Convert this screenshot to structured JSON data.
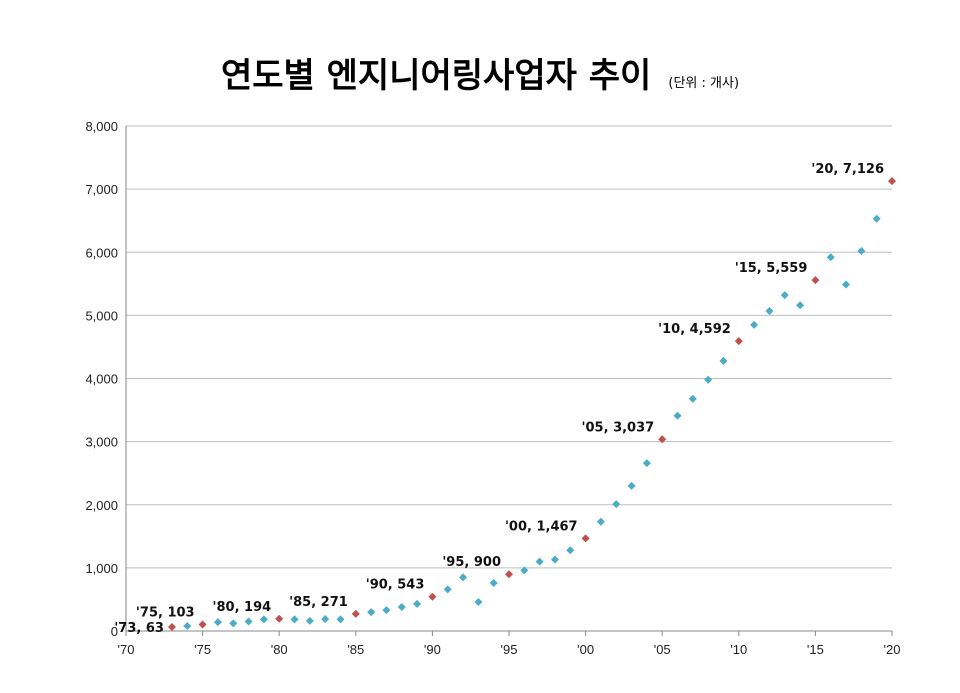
{
  "title": "연도별 엔지니어링사업자 추이",
  "unit_note": "(단위 : 개사)",
  "chart_data": {
    "type": "scatter",
    "xlim": [
      1970,
      2020
    ],
    "ylim": [
      0,
      8000
    ],
    "grid": true,
    "legend": "none",
    "x_ticks": [
      {
        "value": 1970,
        "label": "'70"
      },
      {
        "value": 1975,
        "label": "'75"
      },
      {
        "value": 1980,
        "label": "'80"
      },
      {
        "value": 1985,
        "label": "'85"
      },
      {
        "value": 1990,
        "label": "'90"
      },
      {
        "value": 1995,
        "label": "'95"
      },
      {
        "value": 2000,
        "label": "'00"
      },
      {
        "value": 2005,
        "label": "'05"
      },
      {
        "value": 2010,
        "label": "'10"
      },
      {
        "value": 2015,
        "label": "'15"
      },
      {
        "value": 2020,
        "label": "'20"
      }
    ],
    "y_ticks": [
      {
        "value": 0,
        "label": "0"
      },
      {
        "value": 1000,
        "label": "1,000"
      },
      {
        "value": 2000,
        "label": "2,000"
      },
      {
        "value": 3000,
        "label": "3,000"
      },
      {
        "value": 4000,
        "label": "4,000"
      },
      {
        "value": 5000,
        "label": "5,000"
      },
      {
        "value": 6000,
        "label": "6,000"
      },
      {
        "value": 7000,
        "label": "7,000"
      },
      {
        "value": 8000,
        "label": "8,000"
      }
    ],
    "colors": {
      "regular": "#4bacc6",
      "highlight": "#c0504d",
      "grid": "#bdbdbd",
      "axis": "#888888"
    },
    "points": [
      {
        "x": 1973,
        "y": 63,
        "label": "'73, 63"
      },
      {
        "x": 1974,
        "y": 80
      },
      {
        "x": 1975,
        "y": 103,
        "label": "'75, 103"
      },
      {
        "x": 1976,
        "y": 140
      },
      {
        "x": 1977,
        "y": 120
      },
      {
        "x": 1978,
        "y": 150
      },
      {
        "x": 1979,
        "y": 185
      },
      {
        "x": 1980,
        "y": 194,
        "label": "'80, 194"
      },
      {
        "x": 1981,
        "y": 185
      },
      {
        "x": 1982,
        "y": 160
      },
      {
        "x": 1983,
        "y": 190
      },
      {
        "x": 1984,
        "y": 185
      },
      {
        "x": 1985,
        "y": 271,
        "label": "'85, 271"
      },
      {
        "x": 1986,
        "y": 300
      },
      {
        "x": 1987,
        "y": 330
      },
      {
        "x": 1988,
        "y": 380
      },
      {
        "x": 1989,
        "y": 430
      },
      {
        "x": 1990,
        "y": 543,
        "label": "'90, 543"
      },
      {
        "x": 1991,
        "y": 660
      },
      {
        "x": 1992,
        "y": 850
      },
      {
        "x": 1993,
        "y": 460
      },
      {
        "x": 1994,
        "y": 760
      },
      {
        "x": 1995,
        "y": 900,
        "label": "'95, 900"
      },
      {
        "x": 1996,
        "y": 960
      },
      {
        "x": 1997,
        "y": 1100
      },
      {
        "x": 1998,
        "y": 1130
      },
      {
        "x": 1999,
        "y": 1280
      },
      {
        "x": 2000,
        "y": 1467,
        "label": "'00, 1,467"
      },
      {
        "x": 2001,
        "y": 1730
      },
      {
        "x": 2002,
        "y": 2010
      },
      {
        "x": 2003,
        "y": 2300
      },
      {
        "x": 2004,
        "y": 2660
      },
      {
        "x": 2005,
        "y": 3037,
        "label": "'05, 3,037"
      },
      {
        "x": 2006,
        "y": 3410
      },
      {
        "x": 2007,
        "y": 3680
      },
      {
        "x": 2008,
        "y": 3980
      },
      {
        "x": 2009,
        "y": 4280
      },
      {
        "x": 2010,
        "y": 4592,
        "label": "'10, 4,592"
      },
      {
        "x": 2011,
        "y": 4850
      },
      {
        "x": 2012,
        "y": 5070
      },
      {
        "x": 2013,
        "y": 5320
      },
      {
        "x": 2014,
        "y": 5160
      },
      {
        "x": 2015,
        "y": 5559,
        "label": "'15, 5,559"
      },
      {
        "x": 2016,
        "y": 5920
      },
      {
        "x": 2017,
        "y": 5490
      },
      {
        "x": 2018,
        "y": 6020
      },
      {
        "x": 2019,
        "y": 6530
      },
      {
        "x": 2020,
        "y": 7126,
        "label": "'20, 7,126"
      }
    ]
  }
}
